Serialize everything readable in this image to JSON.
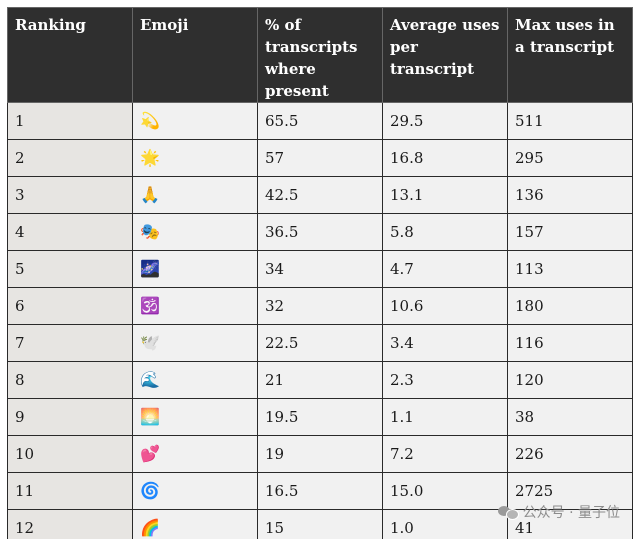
{
  "table": {
    "headers": [
      "Ranking",
      "Emoji",
      "% of transcripts where present",
      "Average uses per transcript",
      "Max uses in a transcript"
    ],
    "rows": [
      {
        "rank": "1",
        "emoji": "💫",
        "pct": "65.5",
        "avg": "29.5",
        "max": "511"
      },
      {
        "rank": "2",
        "emoji": "🌟",
        "pct": "57",
        "avg": "16.8",
        "max": "295"
      },
      {
        "rank": "3",
        "emoji": "🙏",
        "pct": "42.5",
        "avg": "13.1",
        "max": "136"
      },
      {
        "rank": "4",
        "emoji": "🎭",
        "pct": "36.5",
        "avg": "5.8",
        "max": "157"
      },
      {
        "rank": "5",
        "emoji": "🌌",
        "pct": "34",
        "avg": "4.7",
        "max": "113"
      },
      {
        "rank": "6",
        "emoji": "🕉️",
        "pct": "32",
        "avg": "10.6",
        "max": "180"
      },
      {
        "rank": "7",
        "emoji": "🕊️",
        "pct": "22.5",
        "avg": "3.4",
        "max": "116"
      },
      {
        "rank": "8",
        "emoji": "🌊",
        "pct": "21",
        "avg": "2.3",
        "max": "120"
      },
      {
        "rank": "9",
        "emoji": "🌅",
        "pct": "19.5",
        "avg": "1.1",
        "max": "38"
      },
      {
        "rank": "10",
        "emoji": "💕",
        "pct": "19",
        "avg": "7.2",
        "max": "226"
      },
      {
        "rank": "11",
        "emoji": "🌀",
        "pct": "16.5",
        "avg": "15.0",
        "max": "2725"
      },
      {
        "rank": "12",
        "emoji": "🌈",
        "pct": "15",
        "avg": "1.0",
        "max": "41"
      }
    ]
  },
  "watermark": {
    "icon": "wechat-icon",
    "text": "公众号 · 量子位"
  }
}
